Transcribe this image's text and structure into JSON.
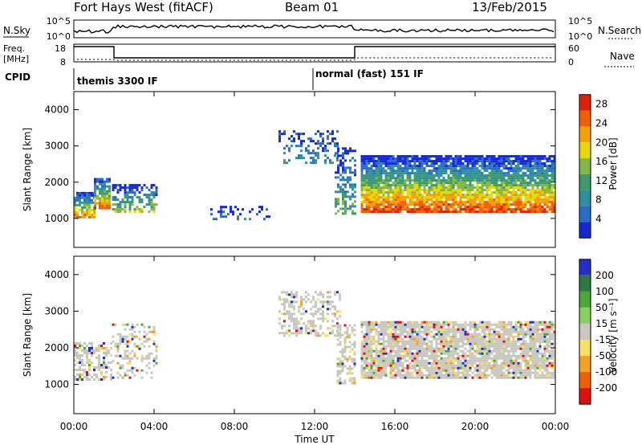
{
  "header": {
    "radar": "Fort Hays West (fitACF)",
    "beam": "Beam 01",
    "date": "13/Feb/2015"
  },
  "strips": {
    "nsky_label": "N.Sky",
    "nsky_ticks": [
      "10^5",
      "10^0"
    ],
    "nsearch_label": "N.Search",
    "nsearch_ticks": [
      "10^5",
      "10^0"
    ],
    "freq_label_line1": "Freq.",
    "freq_label_line2": "[MHz]",
    "freq_ticks": [
      "18",
      "8"
    ],
    "nave_label": "Nave",
    "nave_ticks": [
      "60",
      "0"
    ],
    "cpid_label": "CPID",
    "cpid_segments": [
      {
        "label": "themis 3300 IF",
        "start_hour": 0
      },
      {
        "label": "normal (fast) 151 IF",
        "start_hour": 12
      }
    ]
  },
  "chart_data": [
    {
      "type": "heatmap",
      "title": "",
      "xlabel": "Time UT",
      "ylabel": "Slant Range [km]",
      "xlim": [
        0,
        24
      ],
      "ylim": [
        200,
        4500
      ],
      "x_ticks": [
        "00:00",
        "04:00",
        "08:00",
        "12:00",
        "16:00",
        "20:00",
        "00:00"
      ],
      "x_tick_values": [
        0,
        4,
        8,
        12,
        16,
        20,
        24
      ],
      "y_ticks": [
        1000,
        2000,
        3000,
        4000
      ],
      "colorbar_label": "Power [dB]",
      "colorbar_ticks": [
        4,
        8,
        12,
        16,
        20,
        24,
        28
      ],
      "colorbar_range": [
        0,
        30
      ],
      "colorbar_colors": [
        "#1428d8",
        "#2a6cc8",
        "#2e8fa0",
        "#3e9a68",
        "#7fb848",
        "#e8d800",
        "#f4a000",
        "#f06000",
        "#e02000"
      ],
      "scatter_regions": [
        {
          "t0": 0.0,
          "t1": 1.0,
          "r_low": 1000,
          "r_high": 1700,
          "intensity": 0.8
        },
        {
          "t0": 1.0,
          "t1": 1.8,
          "r_low": 1250,
          "r_high": 2100,
          "intensity": 0.85
        },
        {
          "t0": 1.9,
          "t1": 4.1,
          "r_low": 1150,
          "r_high": 1900,
          "intensity": 0.55
        },
        {
          "t0": 6.8,
          "t1": 9.8,
          "r_low": 950,
          "r_high": 1300,
          "intensity": 0.2
        },
        {
          "t0": 10.2,
          "t1": 13.2,
          "r_low": 2500,
          "r_high": 3400,
          "intensity": 0.3
        },
        {
          "t0": 13.0,
          "t1": 14.0,
          "r_low": 1100,
          "r_high": 2900,
          "intensity": 0.45
        },
        {
          "t0": 14.3,
          "t1": 24.0,
          "r_low": 1150,
          "r_high": 2700,
          "intensity": 0.9
        }
      ]
    },
    {
      "type": "heatmap",
      "title": "",
      "xlabel": "Time UT",
      "ylabel": "Slant Range [km]",
      "xlim": [
        0,
        24
      ],
      "ylim": [
        200,
        4500
      ],
      "x_ticks": [
        "00:00",
        "04:00",
        "08:00",
        "12:00",
        "16:00",
        "20:00",
        "00:00"
      ],
      "x_tick_values": [
        0,
        4,
        8,
        12,
        16,
        20,
        24
      ],
      "y_ticks": [
        1000,
        2000,
        3000,
        4000
      ],
      "colorbar_label": "Velocity [m s⁻¹]",
      "colorbar_ticks": [
        200,
        100,
        50,
        15,
        -15,
        -50,
        -100,
        -200
      ],
      "colorbar_colors": [
        "#2030c8",
        "#2c7a40",
        "#4aa838",
        "#88d060",
        "#c8c8c0",
        "#f8e060",
        "#f4a020",
        "#f06000",
        "#e01010"
      ],
      "scatter_regions": [
        {
          "t0": 0.0,
          "t1": 1.9,
          "r_low": 1100,
          "r_high": 2100,
          "intensity": 0.5
        },
        {
          "t0": 1.9,
          "t1": 4.1,
          "r_low": 1150,
          "r_high": 2600,
          "intensity": 0.3
        },
        {
          "t0": 10.2,
          "t1": 13.3,
          "r_low": 2300,
          "r_high": 3500,
          "intensity": 0.4
        },
        {
          "t0": 13.1,
          "t1": 14.0,
          "r_low": 1000,
          "r_high": 2600,
          "intensity": 0.5
        },
        {
          "t0": 14.3,
          "t1": 24.0,
          "r_low": 1150,
          "r_high": 2700,
          "intensity": 0.85
        }
      ]
    }
  ]
}
